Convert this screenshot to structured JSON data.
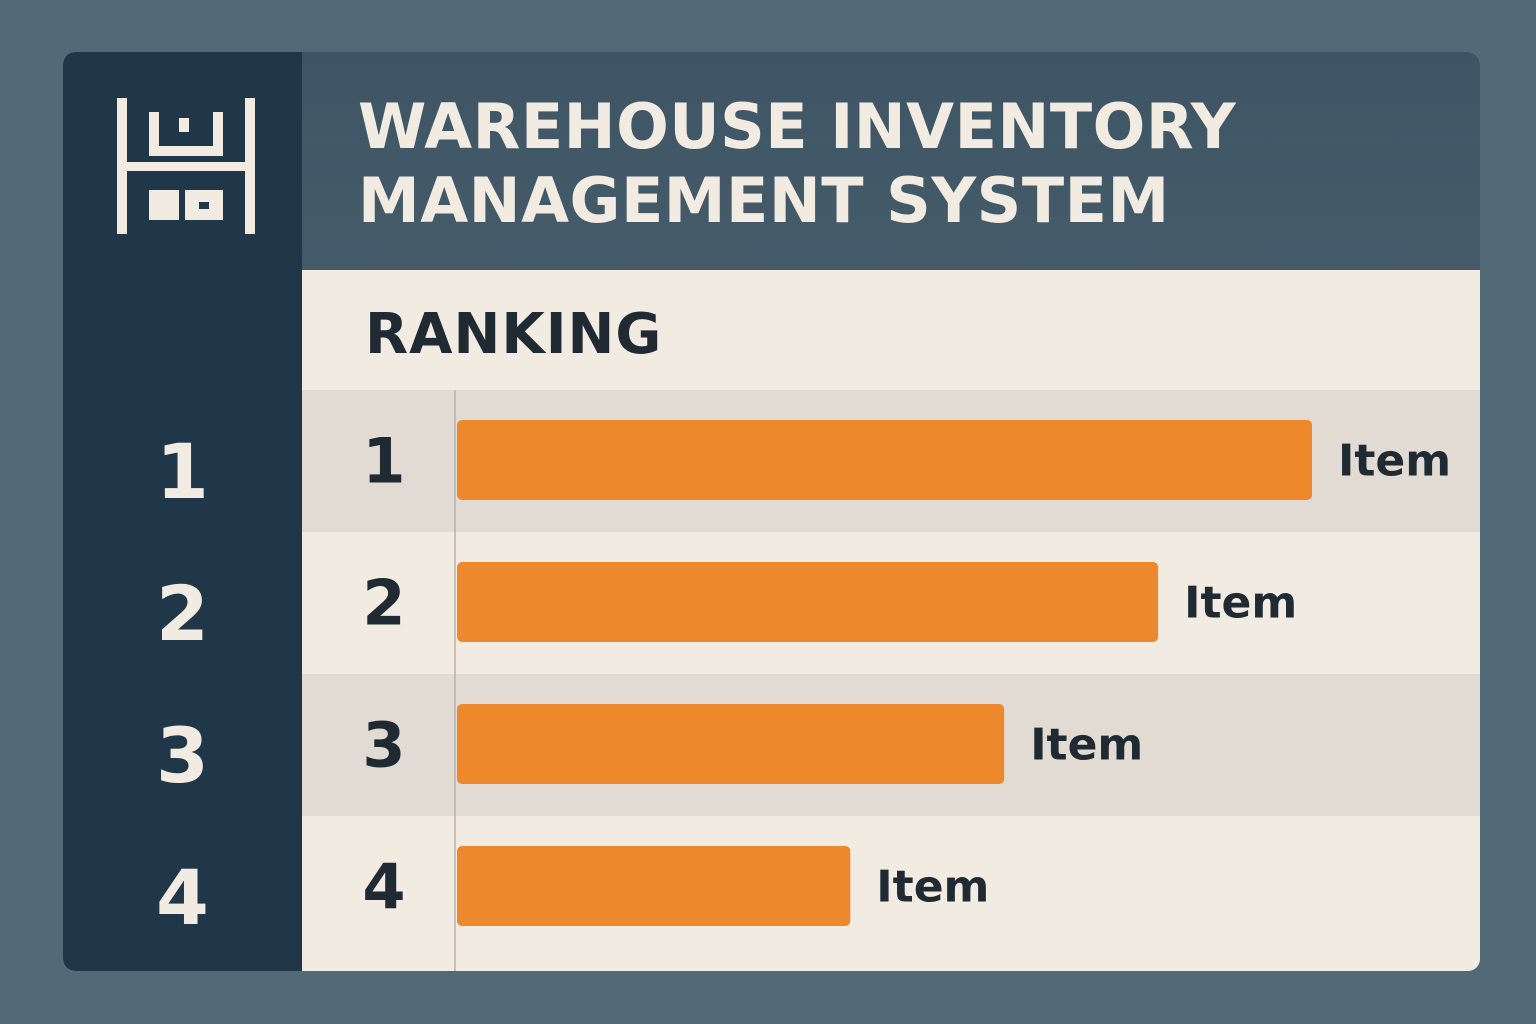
{
  "header": {
    "title_line1": "WAREHOUSE INVENTORY",
    "title_line2": "MANAGEMENT SYSTEM",
    "logo_icon": "warehouse-shelf-icon"
  },
  "section": {
    "label": "RANKING"
  },
  "sidebar": {
    "numbers": [
      "1",
      "2",
      "3",
      "4"
    ]
  },
  "colors": {
    "background": "#526a78",
    "sidebar": "#203749",
    "header": "#455b6a",
    "panel": "#f2ebe2",
    "row_alt": "#e1dbd3",
    "bar": "#ee882c",
    "text_dark": "#1f2a33",
    "text_light": "#f2ebe2"
  },
  "chart_data": {
    "type": "bar",
    "orientation": "horizontal",
    "ranks": [
      "1",
      "2",
      "3",
      "4"
    ],
    "categories": [
      "Item",
      "Item",
      "Item",
      "Item"
    ],
    "values": [
      100,
      82,
      64,
      46
    ],
    "xlim": [
      0,
      100
    ],
    "axis_labels_shown": false,
    "grid": false,
    "legend": "none"
  }
}
